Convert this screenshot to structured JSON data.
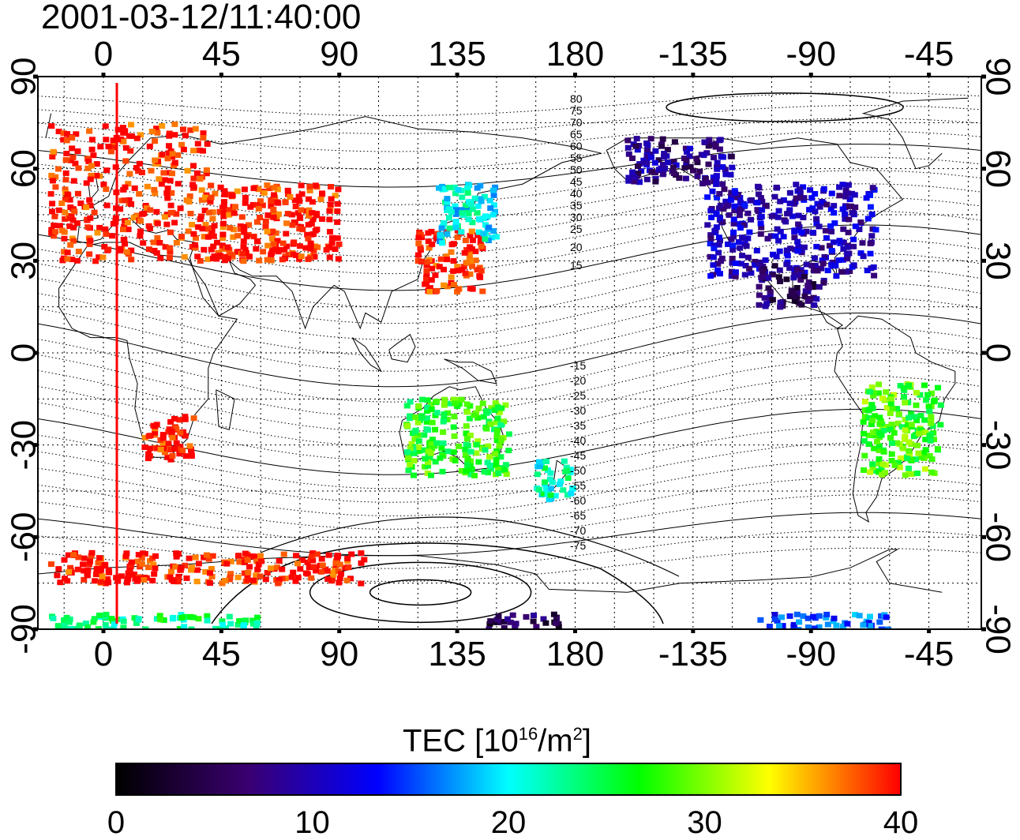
{
  "timestamp": "2001-03-12/11:40:00",
  "lon_ticks": [
    "0",
    "45",
    "90",
    "135",
    "180",
    "-135",
    "-90",
    "-45"
  ],
  "lat_ticks": [
    "90",
    "60",
    "30",
    "0",
    "-30",
    "-60",
    "-90"
  ],
  "colorbar": {
    "label_prefix": "TEC  [10",
    "label_exp1": "16",
    "label_mid": "/m",
    "label_exp2": "2",
    "label_suffix": "]",
    "ticks": [
      "0",
      "10",
      "20",
      "30",
      "40"
    ],
    "range": [
      0,
      40
    ],
    "stops": [
      "#000000",
      "#3a0070",
      "#0000ff",
      "#00ffff",
      "#00ff00",
      "#ffff00",
      "#ff0000"
    ]
  },
  "contour_labels_north": [
    "80",
    "75",
    "70",
    "65",
    "60",
    "55",
    "50",
    "45",
    "40",
    "35",
    "30",
    "25",
    "20",
    "15"
  ],
  "contour_labels_south": [
    "-15",
    "-20",
    "-25",
    "-30",
    "-35",
    "-40",
    "-45",
    "-50",
    "-55",
    "-60",
    "-65",
    "-70",
    "-75"
  ],
  "chart_data": {
    "type": "heatmap",
    "title": "2001-03-12/11:40:00",
    "x_axis": {
      "ticks": [
        0,
        45,
        90,
        135,
        180,
        -135,
        -90,
        -45
      ],
      "range_lon": [
        -25,
        335
      ]
    },
    "y_axis": {
      "ticks": [
        90,
        60,
        30,
        0,
        -30,
        -60,
        -90
      ],
      "range": [
        -90,
        90
      ]
    },
    "colorbar_label": "TEC [10^16/m^2]",
    "colorbar_range": [
      0,
      40
    ],
    "subsolar_meridian_lon": 5,
    "regions": [
      {
        "lon": [
          -20,
          40
        ],
        "lat": [
          30,
          75
        ],
        "tec": 40
      },
      {
        "lon": [
          40,
          90
        ],
        "lat": [
          30,
          55
        ],
        "tec": 40
      },
      {
        "lon": [
          120,
          145
        ],
        "lat": [
          20,
          40
        ],
        "tec": 40
      },
      {
        "lon": [
          128,
          150
        ],
        "lat": [
          35,
          55
        ],
        "tec": 20
      },
      {
        "lon": [
          -130,
          -65
        ],
        "lat": [
          25,
          55
        ],
        "tec": 10
      },
      {
        "lon": [
          -110,
          -85
        ],
        "lat": [
          15,
          30
        ],
        "tec": 6
      },
      {
        "lon": [
          -160,
          -120
        ],
        "lat": [
          55,
          70
        ],
        "tec": 8
      },
      {
        "lon": [
          -70,
          -40
        ],
        "lat": [
          -40,
          -10
        ],
        "tec": 28
      },
      {
        "lon": [
          115,
          155
        ],
        "lat": [
          -40,
          -15
        ],
        "tec": 27
      },
      {
        "lon": [
          165,
          180
        ],
        "lat": [
          -48,
          -35
        ],
        "tec": 22
      },
      {
        "lon": [
          15,
          35
        ],
        "lat": [
          -35,
          -20
        ],
        "tec": 40
      },
      {
        "lon": [
          -20,
          100
        ],
        "lat": [
          -75,
          -65
        ],
        "tec": 40
      },
      {
        "lon": [
          -20,
          60
        ],
        "lat": [
          -90,
          -85
        ],
        "tec": 24
      },
      {
        "lon": [
          145,
          175
        ],
        "lat": [
          -90,
          -85
        ],
        "tec": 5
      },
      {
        "lon": [
          -110,
          -60
        ],
        "lat": [
          -90,
          -85
        ],
        "tec": 15
      }
    ]
  }
}
